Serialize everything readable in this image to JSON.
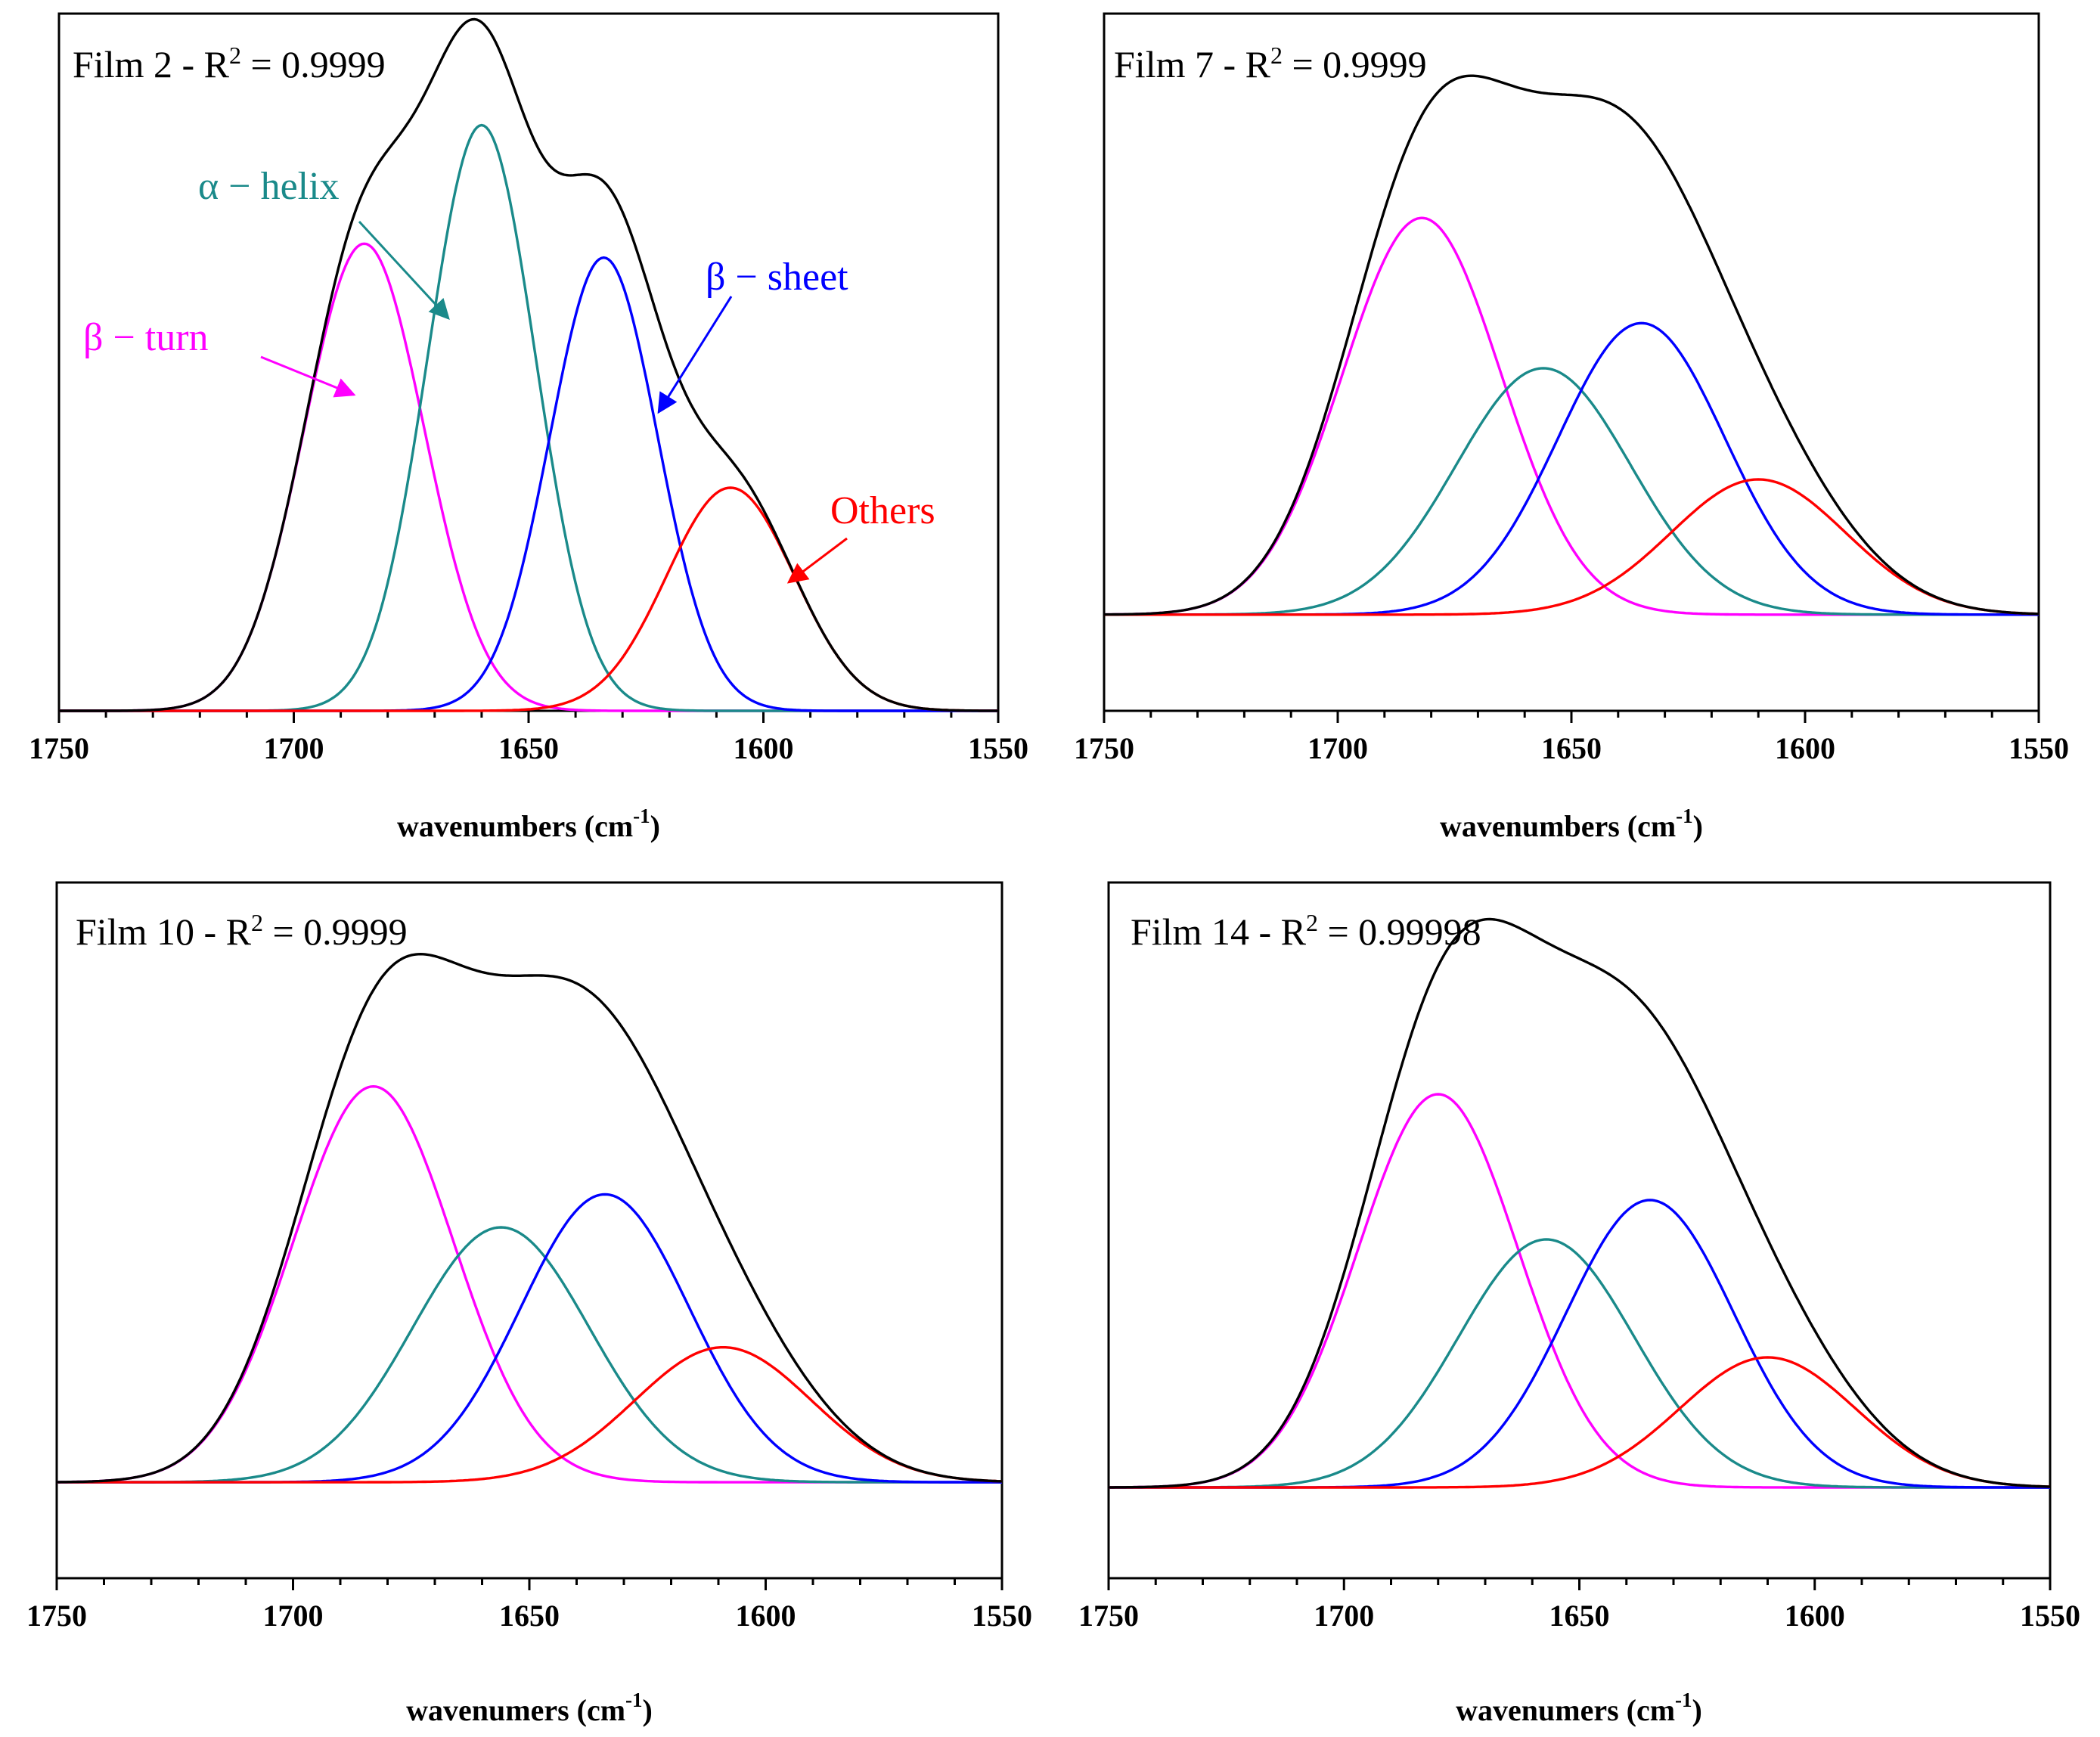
{
  "figure": {
    "colors": {
      "envelope": "#000000",
      "beta_turn": "#ff00ff",
      "alpha_helix": "#1a8a8a",
      "beta_sheet": "#0000ff",
      "others": "#ff0000"
    }
  },
  "chart_data": [
    {
      "type": "line",
      "title": "Film 2 - R² = 0.9999",
      "title_main": "Film 2 - R",
      "title_sup": "2",
      "title_tail": " = 0.9999",
      "xlabel_main": "wavenumbers (cm",
      "xlabel_sup": "-1",
      "xlabel_tail": ")",
      "xlim": [
        1750,
        1550
      ],
      "ylim": [
        0,
        1
      ],
      "xticks": [
        1750,
        1700,
        1650,
        1600,
        1550
      ],
      "tick_labels": [
        "1750",
        "1700",
        "1650",
        "1600",
        "1550"
      ],
      "series": [
        {
          "name": "β-turn",
          "center": 1685,
          "height": 0.67,
          "fwhm": 30
        },
        {
          "name": "α-helix",
          "center": 1660,
          "height": 0.84,
          "fwhm": 27
        },
        {
          "name": "β-sheet",
          "center": 1634,
          "height": 0.65,
          "fwhm": 27
        },
        {
          "name": "Others",
          "center": 1607,
          "height": 0.32,
          "fwhm": 32
        }
      ],
      "annotations": [
        {
          "label": "β − turn",
          "series": "β-turn"
        },
        {
          "label": "α − helix",
          "series": "α-helix"
        },
        {
          "label": "β − sheet",
          "series": "β-sheet"
        },
        {
          "label": "Others",
          "series": "Others"
        }
      ]
    },
    {
      "type": "line",
      "title": "Film 7 - R² = 0.9999",
      "title_main": "Film 7 - R",
      "title_sup": "2",
      "title_tail": " = 0.9999",
      "xlabel_main": "wavenumbers (cm",
      "xlabel_sup": "-1",
      "xlabel_tail": ")",
      "xlim": [
        1750,
        1550
      ],
      "ylim": [
        -0.16,
        1
      ],
      "xticks": [
        1750,
        1700,
        1650,
        1600,
        1550
      ],
      "tick_labels": [
        "1750",
        "1700",
        "1650",
        "1600",
        "1550"
      ],
      "series": [
        {
          "name": "β-turn",
          "center": 1682,
          "height": 0.66,
          "fwhm": 40
        },
        {
          "name": "α-helix",
          "center": 1656,
          "height": 0.41,
          "fwhm": 44
        },
        {
          "name": "β-sheet",
          "center": 1635,
          "height": 0.485,
          "fwhm": 42
        },
        {
          "name": "Others",
          "center": 1610,
          "height": 0.225,
          "fwhm": 44
        }
      ],
      "annotations": []
    },
    {
      "type": "line",
      "title": "Film 10 - R² = 0.9999",
      "title_main": "Film 10 - R",
      "title_sup": "2",
      "title_tail": " = 0.9999",
      "xlabel_main": "wavenumers (cm",
      "xlabel_sup": "-1",
      "xlabel_tail": ")",
      "xlim": [
        1750,
        1550
      ],
      "ylim": [
        -0.16,
        1
      ],
      "xticks": [
        1750,
        1700,
        1650,
        1600,
        1550
      ],
      "tick_labels": [
        "1750",
        "1700",
        "1650",
        "1600",
        "1550"
      ],
      "series": [
        {
          "name": "β-turn",
          "center": 1683,
          "height": 0.66,
          "fwhm": 40
        },
        {
          "name": "α-helix",
          "center": 1656,
          "height": 0.425,
          "fwhm": 44
        },
        {
          "name": "β-sheet",
          "center": 1634,
          "height": 0.48,
          "fwhm": 42
        },
        {
          "name": "Others",
          "center": 1609,
          "height": 0.225,
          "fwhm": 44
        }
      ],
      "annotations": []
    },
    {
      "type": "line",
      "title": "Film 14 - R² = 0.99998",
      "title_main": "Film 14 - R",
      "title_sup": "2",
      "title_tail": " = 0.99998",
      "xlabel_main": "wavenumers (cm",
      "xlabel_sup": "-1",
      "xlabel_tail": ")",
      "xlim": [
        1750,
        1550
      ],
      "ylim": [
        -0.15,
        1
      ],
      "xticks": [
        1750,
        1700,
        1650,
        1600,
        1550
      ],
      "tick_labels": [
        "1750",
        "1700",
        "1650",
        "1600",
        "1550"
      ],
      "series": [
        {
          "name": "β-turn",
          "center": 1680,
          "height": 0.65,
          "fwhm": 40
        },
        {
          "name": "α-helix",
          "center": 1657,
          "height": 0.41,
          "fwhm": 44
        },
        {
          "name": "β-sheet",
          "center": 1635,
          "height": 0.475,
          "fwhm": 42
        },
        {
          "name": "Others",
          "center": 1610,
          "height": 0.215,
          "fwhm": 44
        }
      ],
      "annotations": []
    }
  ]
}
